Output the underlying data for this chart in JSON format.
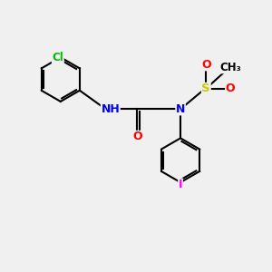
{
  "background_color": "#f0f0f0",
  "bond_color": "#000000",
  "label_colors": {
    "Cl": "#00bb00",
    "N": "#0000ff",
    "H": "#0000ff",
    "O": "#ff0000",
    "S": "#cccc00",
    "I": "#ff00ff"
  },
  "figsize": [
    3.0,
    3.0
  ],
  "dpi": 100
}
